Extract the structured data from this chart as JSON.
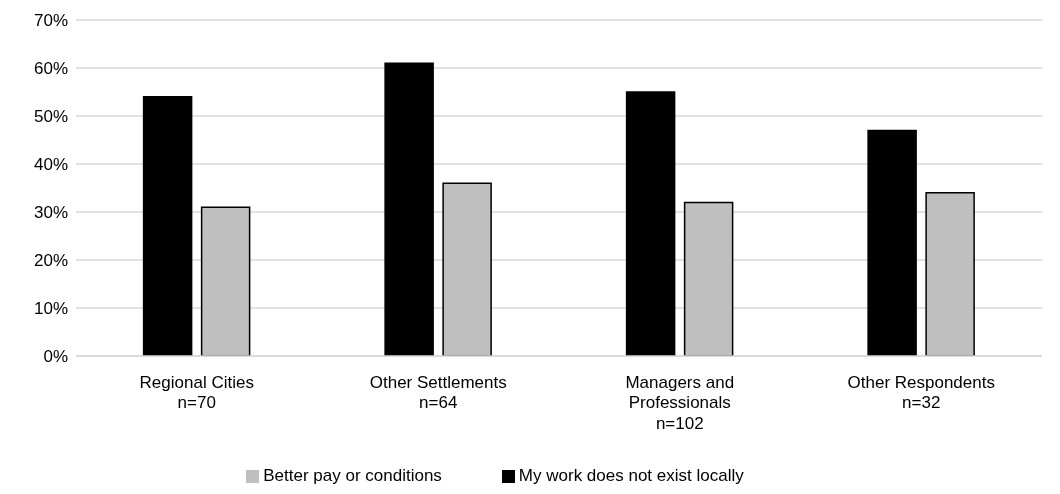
{
  "chart_data": {
    "type": "bar",
    "categories": [
      "Regional Cities\nn=70",
      "Other Settlements\nn=64",
      "Managers and Professionals\nn=102",
      "Other Respondents\nn=32"
    ],
    "series": [
      {
        "name": "My work does not exist locally",
        "color": "#000000",
        "values": [
          0.54,
          0.61,
          0.55,
          0.47
        ]
      },
      {
        "name": "Better pay or conditions",
        "color": "#bfbfbf",
        "values": [
          0.31,
          0.36,
          0.32,
          0.34
        ]
      }
    ],
    "ylim": [
      0,
      0.7
    ],
    "yticks": [
      {
        "value": 0,
        "label": "0%"
      },
      {
        "value": 0.1,
        "label": "10%"
      },
      {
        "value": 0.2,
        "label": "20%"
      },
      {
        "value": 0.3,
        "label": "30%"
      },
      {
        "value": 0.4,
        "label": "40%"
      },
      {
        "value": 0.5,
        "label": "50%"
      },
      {
        "value": 0.6,
        "label": "60%"
      },
      {
        "value": 0.7,
        "label": "70%"
      }
    ],
    "grid": "y",
    "legend": "bottom"
  }
}
